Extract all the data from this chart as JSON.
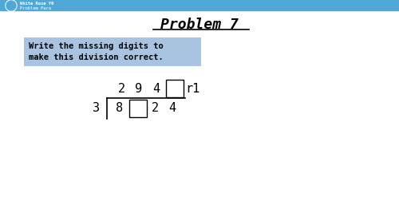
{
  "title": "Problem 7",
  "instruction_line1": "Write the missing digits to",
  "instruction_line2": "make this division correct.",
  "instruction_bg": "#a8c4e0",
  "header_line_color": "#4fa8d8",
  "logo_color": "#4fa8d8",
  "white": "#ffffff",
  "black": "#000000",
  "divisor": "3",
  "header_text1": "White Rose Y6",
  "header_text2": "Problem Para",
  "font_family": "monospace",
  "title_fontsize": 13,
  "figsize": [
    5.0,
    2.81
  ],
  "dpi": 100
}
